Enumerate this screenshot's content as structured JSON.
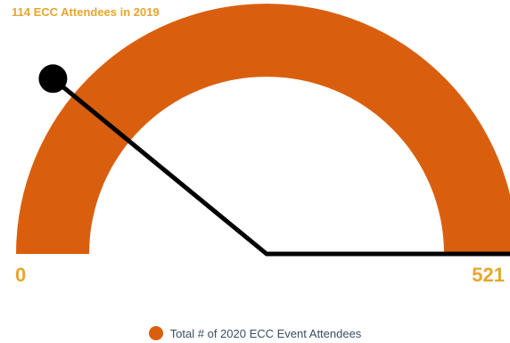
{
  "chart_data": {
    "type": "gauge",
    "title": "114 ECC Attendees in 2019",
    "min": 0,
    "max": 521,
    "min_label": "0",
    "max_label": "521",
    "needle_value": 114,
    "series": [
      {
        "name": "Total # of 2020 ECC Event Attendees",
        "value": 521
      }
    ],
    "legend_position": "bottom"
  },
  "colors": {
    "band": "#d95f0e",
    "labels": "#e8a62b",
    "needle": "#000000",
    "legend_text": "#3a4d63"
  }
}
